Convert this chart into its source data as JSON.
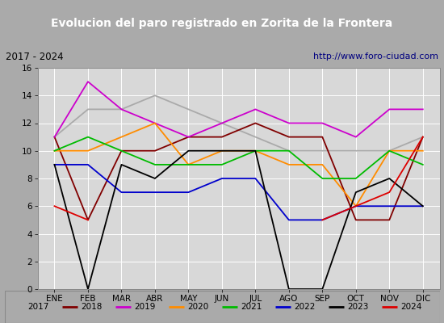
{
  "title": "Evolucion del paro registrado en Zorita de la Frontera",
  "subtitle_left": "2017 - 2024",
  "subtitle_right": "http://www.foro-ciudad.com",
  "months": [
    "ENE",
    "FEB",
    "MAR",
    "ABR",
    "MAY",
    "JUN",
    "JUL",
    "AGO",
    "SEP",
    "OCT",
    "NOV",
    "DIC"
  ],
  "series": {
    "2017": {
      "color": "#aaaaaa",
      "data": [
        11,
        13,
        13,
        14,
        13,
        12,
        11,
        10,
        10,
        10,
        10,
        11
      ]
    },
    "2018": {
      "color": "#800000",
      "data": [
        11,
        5,
        10,
        10,
        11,
        11,
        12,
        11,
        11,
        5,
        5,
        11
      ]
    },
    "2019": {
      "color": "#cc00cc",
      "data": [
        11,
        15,
        13,
        12,
        11,
        12,
        13,
        12,
        12,
        11,
        13,
        13
      ]
    },
    "2020": {
      "color": "#ff8c00",
      "data": [
        10,
        10,
        11,
        12,
        9,
        10,
        10,
        9,
        9,
        6,
        10,
        10
      ]
    },
    "2021": {
      "color": "#00bb00",
      "data": [
        10,
        11,
        10,
        9,
        9,
        9,
        10,
        10,
        8,
        8,
        10,
        9
      ]
    },
    "2022": {
      "color": "#0000cc",
      "data": [
        9,
        9,
        7,
        7,
        7,
        8,
        8,
        5,
        5,
        6,
        6,
        6
      ]
    },
    "2023": {
      "color": "#000000",
      "data": [
        9,
        0,
        9,
        8,
        10,
        10,
        10,
        0,
        0,
        7,
        8,
        6
      ]
    },
    "2024": {
      "color": "#dd0000",
      "data": [
        6,
        5,
        null,
        null,
        null,
        null,
        null,
        null,
        5,
        6,
        7,
        11
      ]
    }
  },
  "ylim": [
    0,
    16
  ],
  "yticks": [
    0,
    2,
    4,
    6,
    8,
    10,
    12,
    14,
    16
  ],
  "title_bg": "#4477cc",
  "title_color": "#ffffff",
  "subtitle_bg": "#dddddd",
  "plot_bg": "#d8d8d8",
  "grid_color": "#ffffff",
  "fig_bg": "#aaaaaa",
  "legend_bg": "#eeeeee"
}
